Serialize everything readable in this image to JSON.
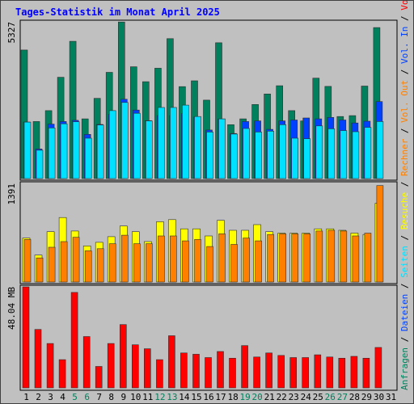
{
  "title": "Tages-Statistik im Monat April 2025",
  "colors": {
    "background": "#c0c0c0",
    "title": "#0000ff",
    "anfragen": "#00805c",
    "dateien": "#0040ff",
    "seiten": "#00e0ff",
    "besuche": "#ffff00",
    "rechner": "#ff8000",
    "volumen": "#ff0000",
    "weekend_label": "#00805c",
    "day_label": "#000000"
  },
  "day_labels": [
    "1",
    "2",
    "3",
    "4",
    "5",
    "6",
    "7",
    "8",
    "9",
    "10",
    "11",
    "12",
    "13",
    "14",
    "15",
    "16",
    "17",
    "18",
    "19",
    "20",
    "21",
    "22",
    "23",
    "24",
    "25",
    "26",
    "27",
    "28",
    "29",
    "30",
    "31"
  ],
  "weekend_days": [
    5,
    6,
    12,
    13,
    19,
    20,
    26,
    27
  ],
  "chart_data": [
    {
      "type": "bar",
      "panel": "top",
      "max_label": "5327",
      "ylim": [
        0,
        5327
      ],
      "categories": [
        "1",
        "2",
        "3",
        "4",
        "5",
        "6",
        "7",
        "8",
        "9",
        "10",
        "11",
        "12",
        "13",
        "14",
        "15",
        "16",
        "17",
        "18",
        "19",
        "20",
        "21",
        "22",
        "23",
        "24",
        "25",
        "26",
        "27",
        "28",
        "29",
        "30",
        "31"
      ],
      "series": [
        {
          "name": "Anfragen",
          "values": [
            4390,
            1950,
            2320,
            3460,
            4690,
            2040,
            2740,
            3630,
            5350,
            3820,
            3310,
            3770,
            4780,
            3140,
            3340,
            2680,
            4640,
            1840,
            2040,
            2530,
            2890,
            3170,
            2320,
            1970,
            3430,
            3150,
            2120,
            2150,
            3160,
            5160,
            null
          ]
        },
        {
          "name": "Dateien",
          "values": [
            1930,
            1010,
            1860,
            1950,
            1990,
            1510,
            1850,
            2190,
            2710,
            2340,
            1980,
            2150,
            2150,
            2220,
            2100,
            1660,
            2030,
            1540,
            1950,
            1970,
            1680,
            1970,
            2000,
            2070,
            2040,
            2090,
            2000,
            1900,
            1960,
            2630,
            null
          ]
        },
        {
          "name": "Seiten",
          "values": [
            1930,
            970,
            1730,
            1870,
            1940,
            1380,
            1830,
            2320,
            2600,
            2230,
            1970,
            2430,
            2430,
            2510,
            2120,
            1590,
            2040,
            1520,
            1710,
            1590,
            1620,
            1840,
            1380,
            1360,
            1800,
            1700,
            1640,
            1600,
            1750,
            1950,
            null
          ]
        }
      ],
      "legend": [
        "Anfragen",
        "Dateien",
        "Seiten"
      ]
    },
    {
      "type": "bar",
      "panel": "middle",
      "max_label": "1391",
      "ylim": [
        0,
        1391
      ],
      "categories": [
        "1",
        "2",
        "3",
        "4",
        "5",
        "6",
        "7",
        "8",
        "9",
        "10",
        "11",
        "12",
        "13",
        "14",
        "15",
        "16",
        "17",
        "18",
        "19",
        "20",
        "21",
        "22",
        "23",
        "24",
        "25",
        "26",
        "27",
        "28",
        "29",
        "30",
        "31"
      ],
      "series": [
        {
          "name": "Besuche",
          "values": [
            620,
            380,
            710,
            910,
            720,
            510,
            560,
            640,
            790,
            710,
            570,
            850,
            880,
            750,
            750,
            650,
            870,
            730,
            730,
            810,
            710,
            690,
            690,
            690,
            750,
            750,
            730,
            690,
            670,
            1110,
            null
          ]
        },
        {
          "name": "Rechner",
          "values": [
            600,
            340,
            490,
            570,
            630,
            440,
            470,
            540,
            660,
            540,
            540,
            650,
            650,
            580,
            600,
            500,
            680,
            530,
            620,
            580,
            670,
            680,
            680,
            680,
            720,
            730,
            720,
            650,
            690,
            1360,
            null
          ]
        }
      ],
      "legend": [
        "Besuche",
        "Rechner"
      ]
    },
    {
      "type": "bar",
      "panel": "bottom",
      "max_label": "48.04 MB",
      "ylim": [
        0,
        48.04
      ],
      "categories": [
        "1",
        "2",
        "3",
        "4",
        "5",
        "6",
        "7",
        "8",
        "9",
        "10",
        "11",
        "12",
        "13",
        "14",
        "15",
        "16",
        "17",
        "18",
        "19",
        "20",
        "21",
        "22",
        "23",
        "24",
        "25",
        "26",
        "27",
        "28",
        "29",
        "30",
        "31"
      ],
      "series": [
        {
          "name": "Volumen",
          "values": [
            48.04,
            27.8,
            21.1,
            13.4,
            45.4,
            24.4,
            10.2,
            21.1,
            30.1,
            20.5,
            18.6,
            13.4,
            24.8,
            16.6,
            16.0,
            14.4,
            17.3,
            14.1,
            20.1,
            14.7,
            16.6,
            15.4,
            14.4,
            14.4,
            15.7,
            14.7,
            14.1,
            15.0,
            14.1,
            19.2,
            null
          ]
        }
      ],
      "legend": [
        "Volumen"
      ]
    }
  ],
  "side_legend": {
    "top": [
      {
        "text": "Anfragen",
        "color": "#00805c"
      },
      {
        "text": " / ",
        "color": "#000000"
      },
      {
        "text": "Dateien",
        "color": "#0040ff"
      },
      {
        "text": " / ",
        "color": "#000000"
      },
      {
        "text": "Seiten",
        "color": "#00e0ff"
      },
      {
        "text": " / ",
        "color": "#000000"
      },
      {
        "text": "Besuche",
        "color": "#ffff00"
      },
      {
        "text": " / ",
        "color": "#000000"
      },
      {
        "text": "Rechner",
        "color": "#ff8000"
      },
      {
        "text": " / ",
        "color": "#000000"
      },
      {
        "text": "Vol. Out",
        "color": "#ff8000"
      },
      {
        "text": " / ",
        "color": "#000000"
      },
      {
        "text": "Vol. In",
        "color": "#0040ff"
      },
      {
        "text": " / ",
        "color": "#000000"
      },
      {
        "text": "Volumen",
        "color": "#ff0000"
      }
    ]
  }
}
